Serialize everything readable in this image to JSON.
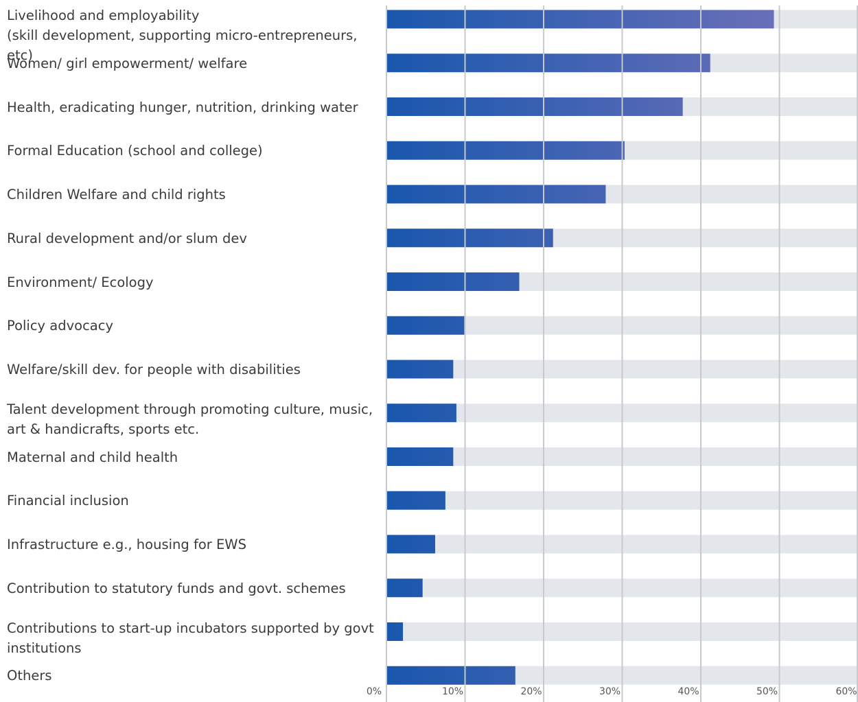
{
  "chart_data": {
    "type": "bar",
    "orientation": "horizontal",
    "categories": [
      "Livelihood and employability\n(skill development, supporting micro-entrepreneurs, etc)",
      "Women/ girl empowerment/ welfare",
      "Health, eradicating hunger, nutrition, drinking water",
      "Formal Education (school and college)",
      "Children Welfare and child rights",
      "Rural development and/or slum dev",
      "Environment/ Ecology",
      "Policy advocacy",
      "Welfare/skill dev. for people with disabilities",
      "Talent development through promoting culture, music,\nart & handicrafts, sports etc.",
      "Maternal and child health",
      "Financial inclusion",
      "Infrastructure e.g., housing for EWS",
      "Contribution to statutory funds and govt. schemes",
      "Contributions to start-up incubators supported by govt\ninstitutions",
      "Others"
    ],
    "values": [
      49.3,
      41.2,
      37.7,
      30.3,
      27.9,
      21.2,
      16.9,
      9.9,
      8.5,
      8.9,
      8.5,
      7.5,
      6.2,
      4.6,
      2.1,
      16.4
    ],
    "xlim": [
      0,
      60
    ],
    "x_ticks": [
      "0%",
      "10%",
      "20%",
      "30%",
      "40%",
      "50%",
      "60%"
    ],
    "grid": true,
    "colors": {
      "bar_start": "#1957ad",
      "bar_end": "#6a6fb8",
      "track": "#e3e7ec",
      "grid": "#c7c9cc"
    }
  }
}
